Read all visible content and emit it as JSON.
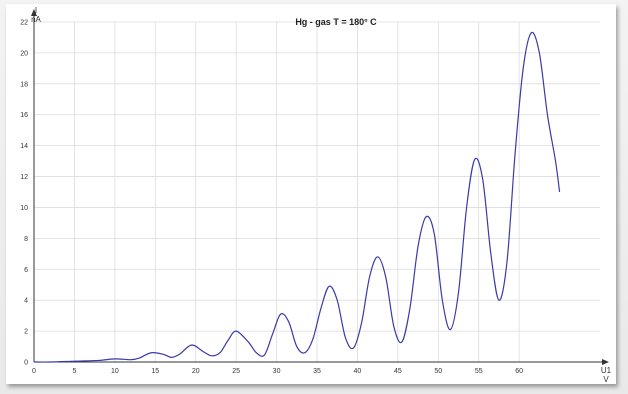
{
  "chart_data": {
    "type": "line",
    "title": "Hg - gas T = 180° C",
    "ylabel_symbol": "I",
    "ylabel_unit": "nA",
    "xlabel_symbol": "U1",
    "xlabel_unit": "V",
    "xlim": [
      0,
      70
    ],
    "ylim": [
      0,
      22
    ],
    "x_ticks": [
      0,
      5,
      10,
      15,
      20,
      25,
      30,
      35,
      40,
      45,
      50,
      55,
      60
    ],
    "y_ticks": [
      0,
      2,
      4,
      6,
      8,
      10,
      12,
      14,
      16,
      18,
      20,
      22
    ],
    "grid": true,
    "line_color": "#3a3aa8",
    "series": [
      {
        "x": [
          0,
          2,
          5,
          8,
          10,
          12,
          13,
          14.5,
          16,
          17,
          18,
          19.5,
          21,
          22,
          23,
          24,
          25,
          26.5,
          27.5,
          28.5,
          29.5,
          30.5,
          31.5,
          32.5,
          33.5,
          34.5,
          35.5,
          36.5,
          37.5,
          38.5,
          39.5,
          40.5,
          41.5,
          42.5,
          43.5,
          44.5,
          45.5,
          46.5,
          47.5,
          48.5,
          49.5,
          50.5,
          51.5,
          52.5,
          53.5,
          54.5,
          55.5,
          56.5,
          57.5,
          58.5,
          59.5,
          60.5,
          61.5,
          62.5,
          63.5,
          64.5,
          65
        ],
        "y": [
          0,
          0,
          0.05,
          0.1,
          0.2,
          0.15,
          0.25,
          0.6,
          0.5,
          0.3,
          0.5,
          1.1,
          0.65,
          0.4,
          0.6,
          1.4,
          2.0,
          1.3,
          0.6,
          0.45,
          1.8,
          3.1,
          2.6,
          1.0,
          0.6,
          1.5,
          3.5,
          4.9,
          4.0,
          1.6,
          0.9,
          2.5,
          5.5,
          6.8,
          5.5,
          2.3,
          1.3,
          3.5,
          7.5,
          9.4,
          8.3,
          4.0,
          2.1,
          4.5,
          10.0,
          13.1,
          11.8,
          7.0,
          4.0,
          6.5,
          13.5,
          19.0,
          21.3,
          20.0,
          16.0,
          13.0,
          11.0
        ]
      }
    ]
  }
}
